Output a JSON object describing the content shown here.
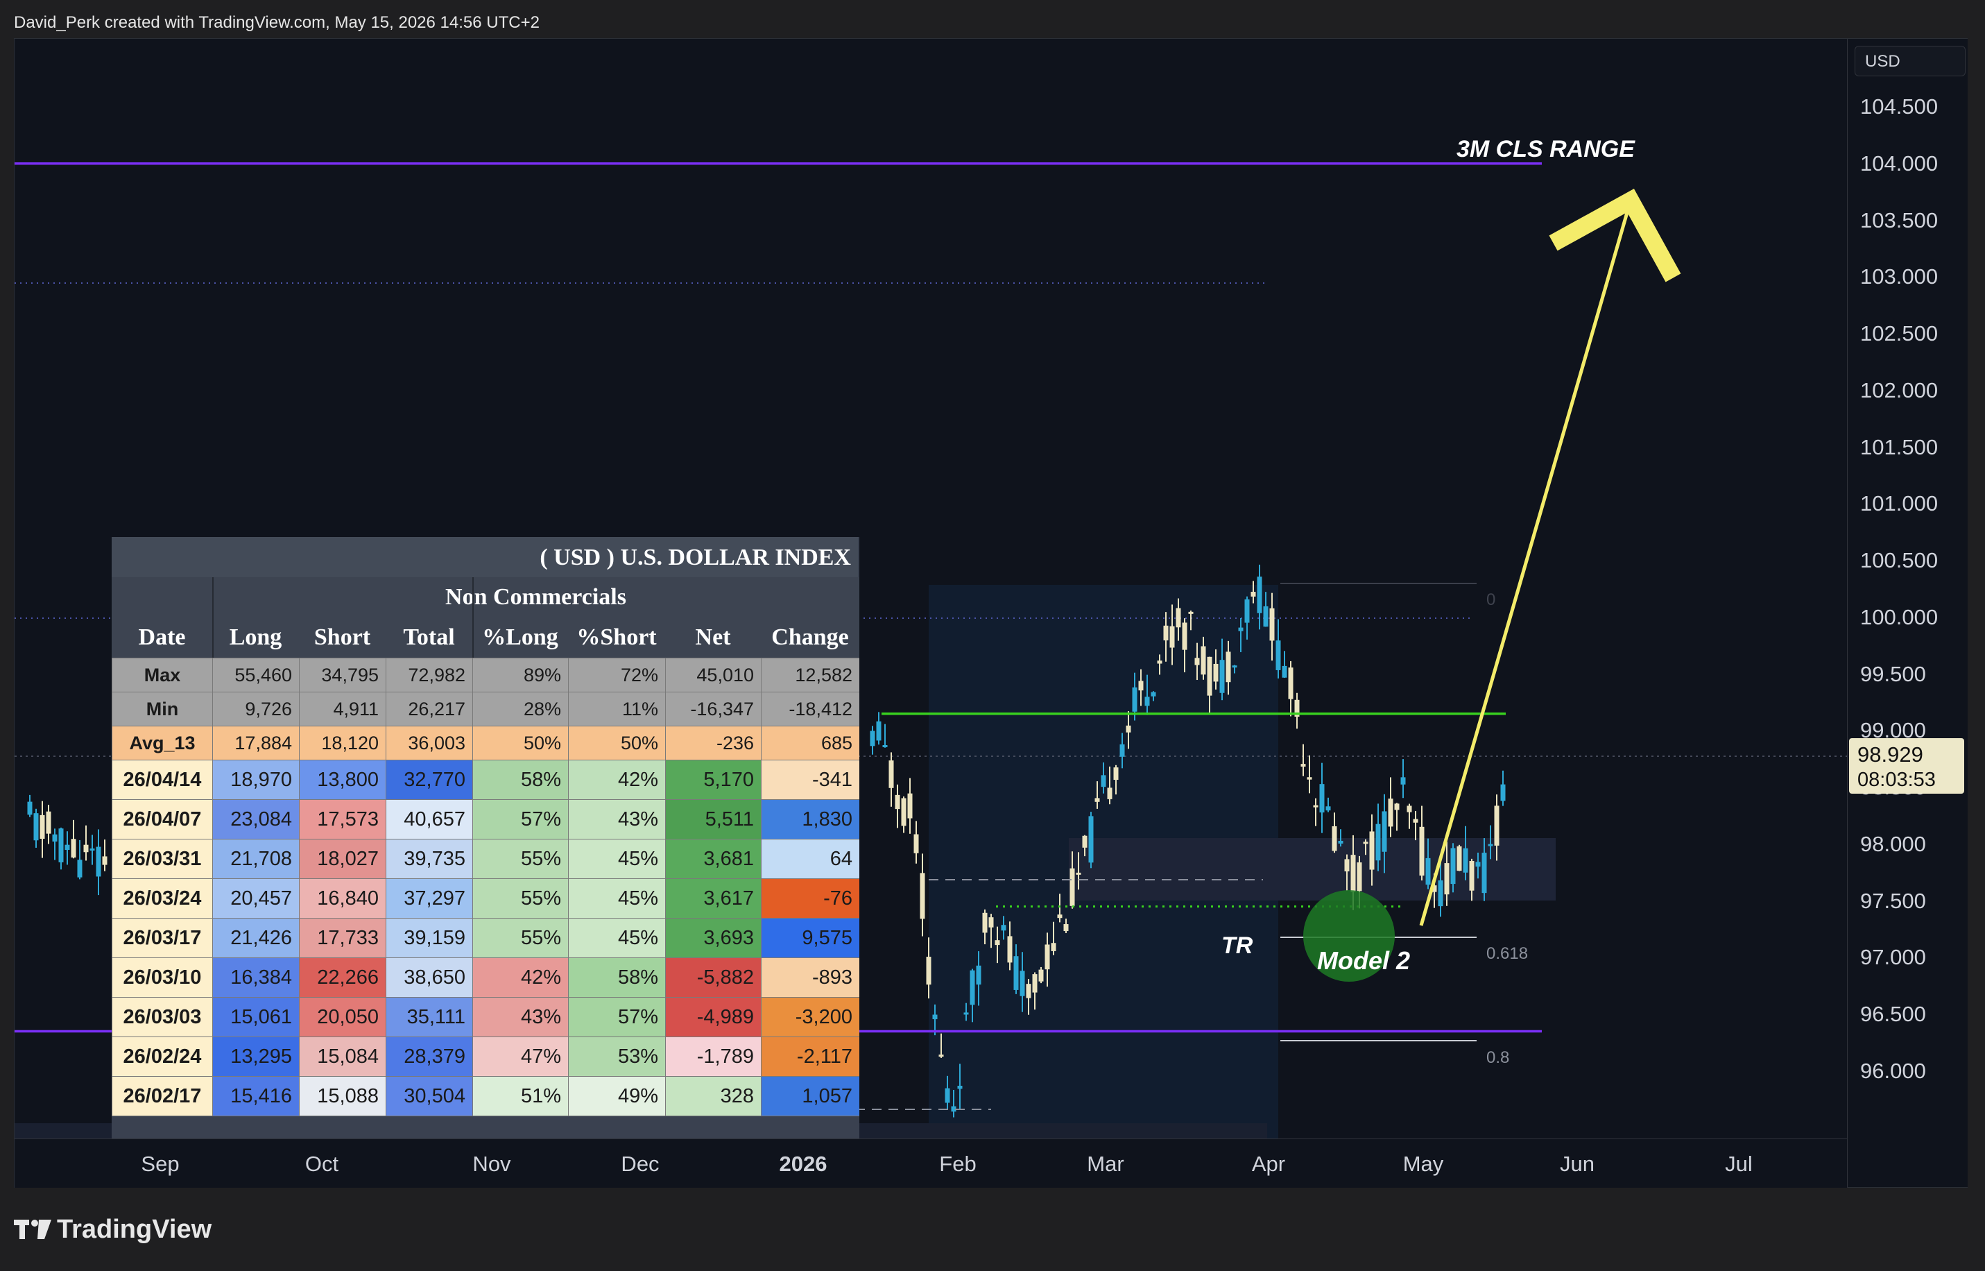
{
  "header": {
    "attribution": "David_Perk created with TradingView.com, May 15, 2026 14:56 UTC+2"
  },
  "price_scale": {
    "currency": "USD",
    "ticks": [
      "104.500",
      "104.000",
      "103.500",
      "103.000",
      "102.500",
      "102.000",
      "101.500",
      "101.000",
      "100.500",
      "100.000",
      "99.500",
      "99.000",
      "98.500",
      "98.000",
      "97.500",
      "97.000",
      "96.500",
      "96.000"
    ],
    "last_price": "98.929",
    "countdown": "08:03:53"
  },
  "time_axis": {
    "labels": [
      "Sep",
      "Oct",
      "Nov",
      "Dec",
      "2026",
      "Feb",
      "Mar",
      "Apr",
      "May",
      "Jun",
      "Jul"
    ]
  },
  "annotations": {
    "range_label": "3M CLS RANGE",
    "tr_label": "TR",
    "model_label": "Model 2",
    "fib_0": "0",
    "fib_0618": "0.618",
    "fib_08": "0.8"
  },
  "levels": {
    "upper_purple": 104.0,
    "lower_purple": 96.35,
    "green_line": 99.15,
    "green_dotted": 97.45
  },
  "colors": {
    "background": "#0f131c",
    "purple": "#7b2ff7",
    "green": "#39d21f",
    "arrow": "#f4ec6a",
    "candle_up": "#2ea9d6",
    "candle_down": "#ece4c0"
  },
  "cot_table": {
    "title": "( USD ) U.S. DOLLAR INDEX",
    "group_header": "Non Commercials",
    "columns": [
      "Date",
      "Long",
      "Short",
      "Total",
      "%Long",
      "%Short",
      "Net",
      "Change"
    ],
    "rows": [
      [
        "Max",
        "55,460",
        "34,795",
        "72,982",
        "89%",
        "72%",
        "45,010",
        "12,582"
      ],
      [
        "Min",
        "9,726",
        "4,911",
        "26,217",
        "28%",
        "11%",
        "-16,347",
        "-18,412"
      ],
      [
        "Avg_13",
        "17,884",
        "18,120",
        "36,003",
        "50%",
        "50%",
        "-236",
        "685"
      ],
      [
        "26/04/14",
        "18,970",
        "13,800",
        "32,770",
        "58%",
        "42%",
        "5,170",
        "-341"
      ],
      [
        "26/04/07",
        "23,084",
        "17,573",
        "40,657",
        "57%",
        "43%",
        "5,511",
        "1,830"
      ],
      [
        "26/03/31",
        "21,708",
        "18,027",
        "39,735",
        "55%",
        "45%",
        "3,681",
        "64"
      ],
      [
        "26/03/24",
        "20,457",
        "16,840",
        "37,297",
        "55%",
        "45%",
        "3,617",
        "-76"
      ],
      [
        "26/03/17",
        "21,426",
        "17,733",
        "39,159",
        "55%",
        "45%",
        "3,693",
        "9,575"
      ],
      [
        "26/03/10",
        "16,384",
        "22,266",
        "38,650",
        "42%",
        "58%",
        "-5,882",
        "-893"
      ],
      [
        "26/03/03",
        "15,061",
        "20,050",
        "35,111",
        "43%",
        "57%",
        "-4,989",
        "-3,200"
      ],
      [
        "26/02/24",
        "13,295",
        "15,084",
        "28,379",
        "47%",
        "53%",
        "-1,789",
        "-2,117"
      ],
      [
        "26/02/17",
        "15,416",
        "15,088",
        "30,504",
        "51%",
        "49%",
        "328",
        "1,057"
      ]
    ],
    "cell_colors": [
      [
        "#a3a3a3",
        "#a3a3a3",
        "#a3a3a3",
        "#a3a3a3",
        "#a3a3a3",
        "#a3a3a3",
        "#a3a3a3",
        "#a3a3a3"
      ],
      [
        "#a3a3a3",
        "#a3a3a3",
        "#a3a3a3",
        "#a3a3a3",
        "#a3a3a3",
        "#a3a3a3",
        "#a3a3a3",
        "#a3a3a3"
      ],
      [
        "#f7c28e",
        "#f7c28e",
        "#f7c28e",
        "#f7c28e",
        "#f7c28e",
        "#f7c28e",
        "#f7c28e",
        "#f7c28e"
      ],
      [
        "#fdf0cc",
        "#8fb2ee",
        "#6b94ec",
        "#3c6fe0",
        "#a9d4a5",
        "#bfe0bb",
        "#57a85a",
        "#f9ddb9"
      ],
      [
        "#fdf0cc",
        "#6c8fe7",
        "#e99896",
        "#dce8f7",
        "#acd6a8",
        "#c5e3c0",
        "#4e9f52",
        "#3f7fde"
      ],
      [
        "#fdf0cc",
        "#8eb3ed",
        "#e29290",
        "#c2d6f2",
        "#b8dcb3",
        "#cce7c7",
        "#59aa5c",
        "#c3dcf5"
      ],
      [
        "#fdf0cc",
        "#a5c3f1",
        "#ecb3b1",
        "#9ec2f1",
        "#b8dcb3",
        "#cce7c7",
        "#5aab5d",
        "#e35d25"
      ],
      [
        "#fdf0cc",
        "#8fb4ee",
        "#e5a09d",
        "#b6d0f2",
        "#b8dcb3",
        "#cce7c7",
        "#57a85a",
        "#2f6de8"
      ],
      [
        "#fdf0cc",
        "#5a82e6",
        "#db605a",
        "#c8d9f2",
        "#e79a97",
        "#a2d39e",
        "#d34e4a",
        "#f7d0a5"
      ],
      [
        "#fdf0cc",
        "#4d79e6",
        "#e27a76",
        "#6f94e8",
        "#e7a09d",
        "#a5d4a0",
        "#d6504c",
        "#ea8f3d"
      ],
      [
        "#fdf0cc",
        "#3b6ee5",
        "#eab9b7",
        "#4f7ae6",
        "#f1c8c6",
        "#b1d9ac",
        "#f6d2d7",
        "#e9883a"
      ],
      [
        "#fdf0cc",
        "#4f7ae6",
        "#e7ebf1",
        "#5f86e8",
        "#dbeed8",
        "#e4f1e2",
        "#c6e4c1",
        "#3b78df"
      ]
    ]
  }
}
